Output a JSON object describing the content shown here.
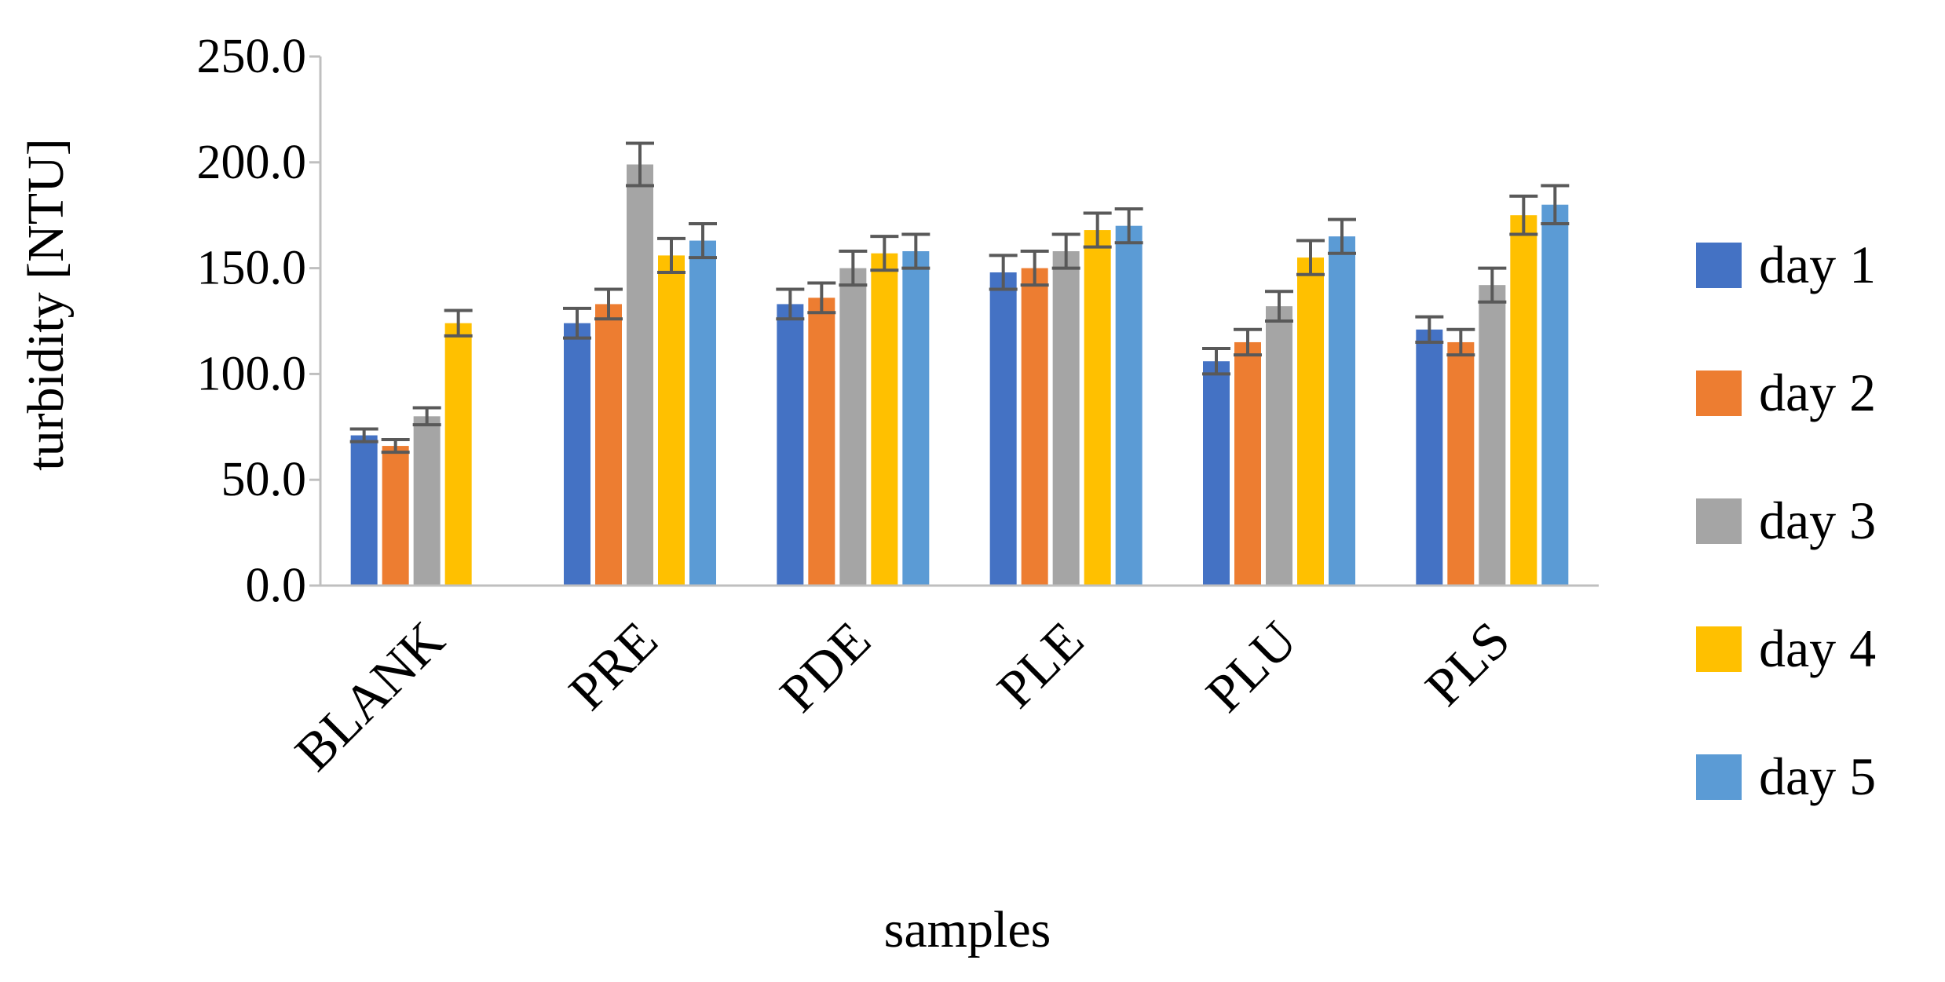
{
  "chart_data": {
    "type": "bar",
    "title": "",
    "xlabel": "samples",
    "ylabel": "turbidity [NTU]",
    "ylim": [
      0,
      250
    ],
    "yticks": [
      0,
      50,
      100,
      150,
      200,
      250
    ],
    "ytick_labels": [
      "0.0",
      "50.0",
      "100.0",
      "150.0",
      "200.0",
      "250.0"
    ],
    "grid": false,
    "legend_position": "right",
    "categories": [
      "BLANK",
      "PRE",
      "PDE",
      "PLE",
      "PLU",
      "PLS"
    ],
    "series": [
      {
        "name": "day 1",
        "color": "#4472C4",
        "values": [
          71,
          124,
          133,
          148,
          106,
          121
        ],
        "errors": [
          3,
          7,
          7,
          8,
          6,
          6
        ]
      },
      {
        "name": "day 2",
        "color": "#ED7D31",
        "values": [
          66,
          133,
          136,
          150,
          115,
          115
        ],
        "errors": [
          3,
          7,
          7,
          8,
          6,
          6
        ]
      },
      {
        "name": "day 3",
        "color": "#A5A5A5",
        "values": [
          80,
          199,
          150,
          158,
          132,
          142
        ],
        "errors": [
          4,
          10,
          8,
          8,
          7,
          8
        ]
      },
      {
        "name": "day 4",
        "color": "#FFC000",
        "values": [
          124,
          156,
          157,
          168,
          155,
          175
        ],
        "errors": [
          6,
          8,
          8,
          8,
          8,
          9
        ]
      },
      {
        "name": "day 5",
        "color": "#5B9BD5",
        "values": [
          null,
          163,
          158,
          170,
          165,
          180
        ],
        "errors": [
          null,
          8,
          8,
          8,
          8,
          9
        ]
      }
    ]
  }
}
